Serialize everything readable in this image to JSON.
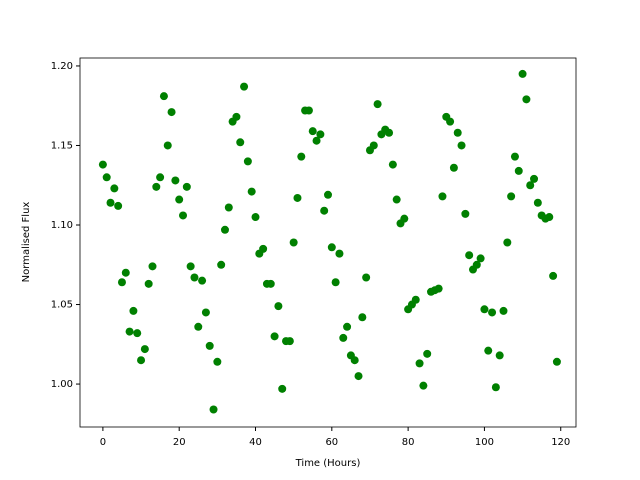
{
  "chart_data": {
    "type": "scatter",
    "xlabel": "Time (Hours)",
    "ylabel": "Normalised Flux",
    "color": "#008000",
    "x": [
      0,
      1,
      2,
      3,
      4,
      5,
      6,
      7,
      8,
      9,
      10,
      11,
      12,
      13,
      14,
      15,
      16,
      17,
      18,
      19,
      20,
      21,
      22,
      23,
      24,
      25,
      26,
      27,
      28,
      29,
      30,
      31,
      32,
      33,
      34,
      35,
      36,
      37,
      38,
      39,
      40,
      41,
      42,
      43,
      44,
      45,
      46,
      47,
      48,
      49,
      50,
      51,
      52,
      53,
      54,
      55,
      56,
      57,
      58,
      59,
      60,
      61,
      62,
      63,
      64,
      65,
      66,
      67,
      68,
      69,
      70,
      71,
      72,
      73,
      74,
      75,
      76,
      77,
      78,
      79,
      80,
      81,
      82,
      83,
      84,
      85,
      86,
      87,
      88,
      89,
      90,
      91,
      92,
      93,
      94,
      95,
      96,
      97,
      98,
      99,
      100,
      101,
      102,
      103,
      104,
      105,
      106,
      107,
      108,
      109,
      110,
      111,
      112,
      113,
      114,
      115,
      116,
      117,
      118,
      119
    ],
    "values": [
      1.138,
      1.13,
      1.114,
      1.123,
      1.112,
      1.064,
      1.07,
      1.033,
      1.046,
      1.032,
      1.015,
      1.022,
      1.063,
      1.074,
      1.124,
      1.13,
      1.181,
      1.15,
      1.171,
      1.128,
      1.116,
      1.106,
      1.124,
      1.074,
      1.067,
      1.036,
      1.065,
      1.045,
      1.024,
      0.984,
      1.014,
      1.075,
      1.097,
      1.111,
      1.165,
      1.168,
      1.152,
      1.187,
      1.14,
      1.121,
      1.105,
      1.082,
      1.085,
      1.063,
      1.063,
      1.03,
      1.049,
      0.997,
      1.027,
      1.027,
      1.089,
      1.117,
      1.143,
      1.172,
      1.172,
      1.159,
      1.153,
      1.157,
      1.109,
      1.119,
      1.086,
      1.064,
      1.082,
      1.029,
      1.036,
      1.018,
      1.015,
      1.005,
      1.042,
      1.067,
      1.147,
      1.15,
      1.176,
      1.157,
      1.16,
      1.158,
      1.138,
      1.116,
      1.101,
      1.104,
      1.047,
      1.05,
      1.053,
      1.013,
      0.999,
      1.019,
      1.058,
      1.059,
      1.06,
      1.118,
      1.168,
      1.165,
      1.136,
      1.158,
      1.15,
      1.107,
      1.081,
      1.072,
      1.075,
      1.079,
      1.047,
      1.021,
      1.045,
      0.998,
      1.018,
      1.046,
      1.089,
      1.118,
      1.143,
      1.134,
      1.195,
      1.179,
      1.125,
      1.129,
      1.114,
      1.106,
      1.104,
      1.105,
      1.068,
      1.014
    ],
    "xlim": [
      -6,
      124
    ],
    "ylim": [
      0.973,
      1.205
    ],
    "xticks": [
      0,
      20,
      40,
      60,
      80,
      100,
      120
    ],
    "yticks": [
      {
        "value": 1.0,
        "label": "1.00"
      },
      {
        "value": 1.05,
        "label": "1.05"
      },
      {
        "value": 1.1,
        "label": "1.10"
      },
      {
        "value": 1.15,
        "label": "1.15"
      },
      {
        "value": 1.2,
        "label": "1.20"
      }
    ]
  }
}
